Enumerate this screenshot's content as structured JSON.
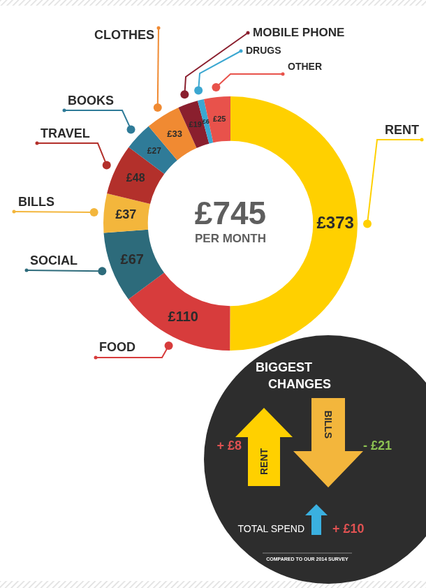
{
  "chart_data": {
    "type": "doughnut",
    "categories": [
      "RENT",
      "FOOD",
      "SOCIAL",
      "BILLS",
      "TRAVEL",
      "BOOKS",
      "CLOTHES",
      "MOBILE PHONE",
      "DRUGS",
      "OTHER"
    ],
    "values": [
      373,
      110,
      67,
      37,
      48,
      27,
      33,
      19,
      6,
      25
    ],
    "value_labels": [
      "£373",
      "£110",
      "£67",
      "£37",
      "£48",
      "£27",
      "£33",
      "£19",
      "£6",
      "£25"
    ],
    "colors": [
      "#ffd000",
      "#d73c3c",
      "#2d6b7b",
      "#f3b63c",
      "#b3302b",
      "#2f7b98",
      "#f08a32",
      "#8a1f2e",
      "#3ba7d1",
      "#e8524b"
    ],
    "data_labels": true,
    "total": {
      "label": "£745",
      "note": "PER MONTH"
    }
  },
  "changes": {
    "title": "BIGGEST CHANGES",
    "items": [
      {
        "name": "RENT",
        "value": 8,
        "label": "+ £8",
        "color": "#ffd000"
      },
      {
        "name": "BILLS",
        "value": -21,
        "label": "- £21",
        "color": "#f3b63c"
      },
      {
        "name": "TOTAL SPEND",
        "value": 10,
        "label": "+ £10",
        "color": "#3ab0e0"
      }
    ],
    "note": "COMPARED TO OUR 2014 SURVEY"
  }
}
